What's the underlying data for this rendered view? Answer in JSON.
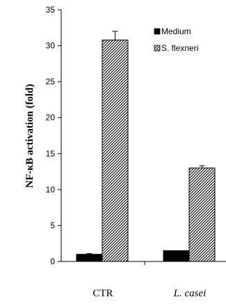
{
  "chart_data": {
    "type": "bar",
    "categories": [
      "CTR",
      "L. casei"
    ],
    "ylabel": "NF-κB activation (fold)",
    "xlabel": "",
    "ylim": [
      0,
      35
    ],
    "yticks": [
      "0",
      "5",
      "10",
      "15",
      "20",
      "25",
      "30",
      "35"
    ],
    "series": [
      {
        "name": "Medium",
        "values": [
          1.0,
          1.5
        ],
        "errors": [
          0.1,
          0.05
        ],
        "color": "#000000",
        "pattern": "solid"
      },
      {
        "name": "S. flexneri",
        "values": [
          30.8,
          13.0
        ],
        "errors": [
          1.2,
          0.3
        ],
        "color": "#000000",
        "pattern": "hatched"
      }
    ],
    "legend_position": "top-right",
    "grid": false
  }
}
